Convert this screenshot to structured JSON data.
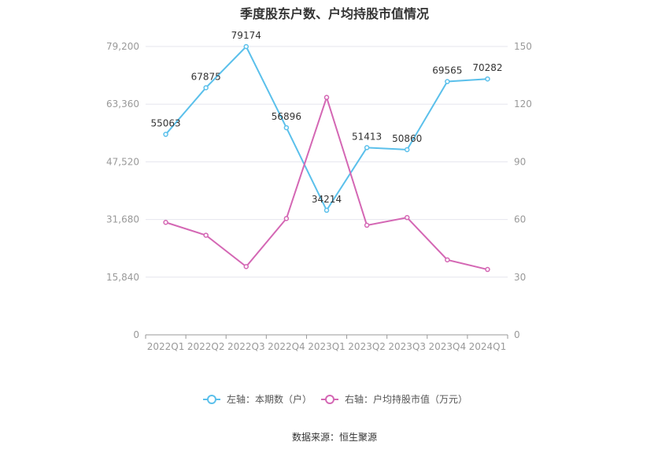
{
  "chart_data": {
    "type": "line",
    "title": "季度股东户数、户均持股市值情况",
    "categories": [
      "2022Q1",
      "2022Q2",
      "2022Q3",
      "2022Q4",
      "2023Q1",
      "2023Q2",
      "2023Q3",
      "2023Q4",
      "2024Q1"
    ],
    "series": [
      {
        "name": "左轴：本期数（户）",
        "axis": "left",
        "color": "#5bc0eb",
        "values": [
          55063,
          67875,
          79174,
          56896,
          34214,
          51413,
          50860,
          69565,
          70282
        ]
      },
      {
        "name": "右轴：户均持股市值（万元）",
        "axis": "right",
        "color": "#d467b4",
        "values": [
          58.5,
          51.8,
          35.5,
          60.5,
          123.5,
          57.0,
          61.0,
          39.0,
          34.0
        ]
      }
    ],
    "left_axis": {
      "ylim": [
        0,
        79200
      ],
      "ticks": [
        0,
        15840,
        31680,
        47520,
        63360,
        79200
      ],
      "tick_labels": [
        "0",
        "15,840",
        "31,680",
        "47,520",
        "63,360",
        "79,200"
      ]
    },
    "right_axis": {
      "ylim": [
        0,
        150
      ],
      "ticks": [
        0,
        30,
        60,
        90,
        120,
        150
      ],
      "tick_labels": [
        "0",
        "30",
        "60",
        "90",
        "120",
        "150"
      ]
    },
    "data_labels_series": 0,
    "grid": true,
    "legend_position": "bottom"
  },
  "source": "数据来源：恒生聚源"
}
